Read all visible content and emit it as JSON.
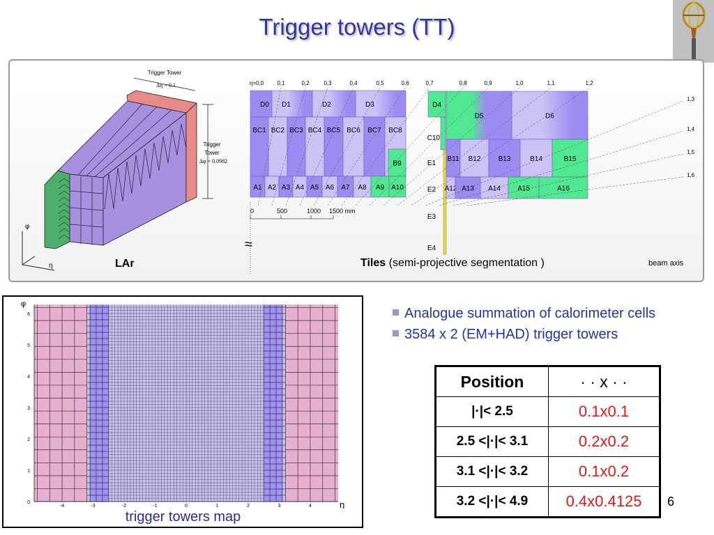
{
  "title": "Trigger towers (TT)",
  "logo": {
    "icon": "atlas-detector-logo"
  },
  "lar": {
    "label": "LAr",
    "eta_tower_label": "Trigger Tower",
    "eta_tower_value": "Δη = 0.1",
    "phi_tower_label1": "Trigger",
    "phi_tower_label2": "Tower",
    "phi_tower_value": "Δφ = 0.0982",
    "axis_phi": "φ",
    "axis_eta": "η",
    "colors": {
      "front": "#4caf6a",
      "body": "#a890e0",
      "back": "#e88a8a"
    }
  },
  "tiles": {
    "eta_labels": [
      "η=0,0",
      "0,1",
      "0,2",
      "0,3",
      "0,4",
      "0,5",
      "0,6",
      "0,7",
      "0,8",
      "0,9",
      "1,0",
      "1,1",
      "1,2",
      "1,3",
      "1,4",
      "1,5",
      "1,6"
    ],
    "d_cells": [
      "D0",
      "D1",
      "D2",
      "D3"
    ],
    "bc_cells": [
      "BC1",
      "BC2",
      "BC3",
      "BC4",
      "BC5",
      "BC6",
      "BC7",
      "BC8"
    ],
    "b9": "B9",
    "a_cells": [
      "A1",
      "A2",
      "A3",
      "A4",
      "A5",
      "A6",
      "A7",
      "A8",
      "A9",
      "A10"
    ],
    "ext_d": [
      "D4",
      "D5",
      "D6"
    ],
    "c10": "C10",
    "ext_b": [
      "B11",
      "B12",
      "B13",
      "B14",
      "B15"
    ],
    "ext_a": [
      "A12",
      "A13",
      "A14",
      "A15",
      "A16"
    ],
    "e_cells": [
      "E1",
      "E2",
      "E3",
      "E4"
    ],
    "scale_labels": [
      "0",
      "500",
      "1000",
      "1500 mm"
    ],
    "approx_symbol": "≈",
    "caption_bold": "Tiles",
    "caption_rest": " (semi-projective segmentation )",
    "beam_axis": "beam axis",
    "colors": {
      "dark": "#9c8cf2",
      "light": "#cbc2f6",
      "green": "#50e890",
      "yellow": "#e8dc40"
    }
  },
  "map": {
    "caption": "trigger towers map",
    "x_axis_label": "η",
    "y_axis_label": "φ",
    "x_ticks": [
      "-4",
      "-3",
      "-2",
      "-1",
      "0",
      "1",
      "2",
      "3",
      "4"
    ],
    "y_ticks": [
      "0",
      "1",
      "2",
      "3",
      "4",
      "5",
      "6"
    ],
    "regions": [
      {
        "eta_min": 0,
        "eta_max": 2.5,
        "d_eta": 0.1,
        "d_phi": 0.1,
        "color": "#c8c0f0"
      },
      {
        "eta_min": 2.5,
        "eta_max": 3.1,
        "d_eta": 0.2,
        "d_phi": 0.2,
        "color": "#a090f8"
      },
      {
        "eta_min": 3.1,
        "eta_max": 3.2,
        "d_eta": 0.1,
        "d_phi": 0.2,
        "color": "#c8c0f0"
      },
      {
        "eta_min": 3.2,
        "eta_max": 4.9,
        "d_eta": 0.4,
        "d_phi": 0.4125,
        "color": "#e8b0d0"
      }
    ]
  },
  "bullets": [
    "Analogue summation of calorimeter cells",
    "3584 x 2 (EM+HAD) trigger towers"
  ],
  "table": {
    "headers": [
      "Position",
      "· · x · ·"
    ],
    "rows": [
      {
        "position": "|·|< 2.5",
        "granularity": "0.1x0.1"
      },
      {
        "position": "2.5 <|·|< 3.1",
        "granularity": "0.2x0.2"
      },
      {
        "position": "3.1 <|·|< 3.2",
        "granularity": "0.1x0.2"
      },
      {
        "position": "3.2 <|·|< 4.9",
        "granularity": "0.4x0.4125"
      }
    ]
  },
  "page_number": "6"
}
